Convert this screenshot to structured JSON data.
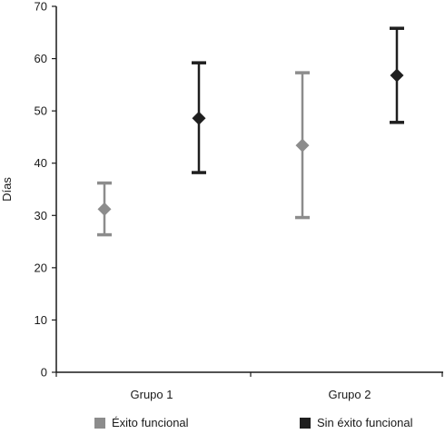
{
  "chart_data": {
    "type": "scatter",
    "subtype": "error-bar",
    "ylabel": "Días",
    "xlabel": "",
    "categories": [
      "Grupo 1",
      "Grupo 2"
    ],
    "ylim": [
      0,
      70
    ],
    "yticks": [
      0,
      10,
      20,
      30,
      40,
      50,
      60,
      70
    ],
    "grid": false,
    "legend_position": "bottom",
    "series": [
      {
        "name": "Éxito funcional",
        "color": "#8c8c8c",
        "marker": "diamond",
        "values": [
          31.2,
          43.4
        ],
        "lower": [
          26.3,
          29.6
        ],
        "upper": [
          36.2,
          57.3
        ]
      },
      {
        "name": "Sin éxito funcional",
        "color": "#1f1f1f",
        "marker": "diamond",
        "values": [
          48.6,
          56.8
        ],
        "lower": [
          38.2,
          47.8
        ],
        "upper": [
          59.2,
          65.8
        ]
      }
    ]
  }
}
